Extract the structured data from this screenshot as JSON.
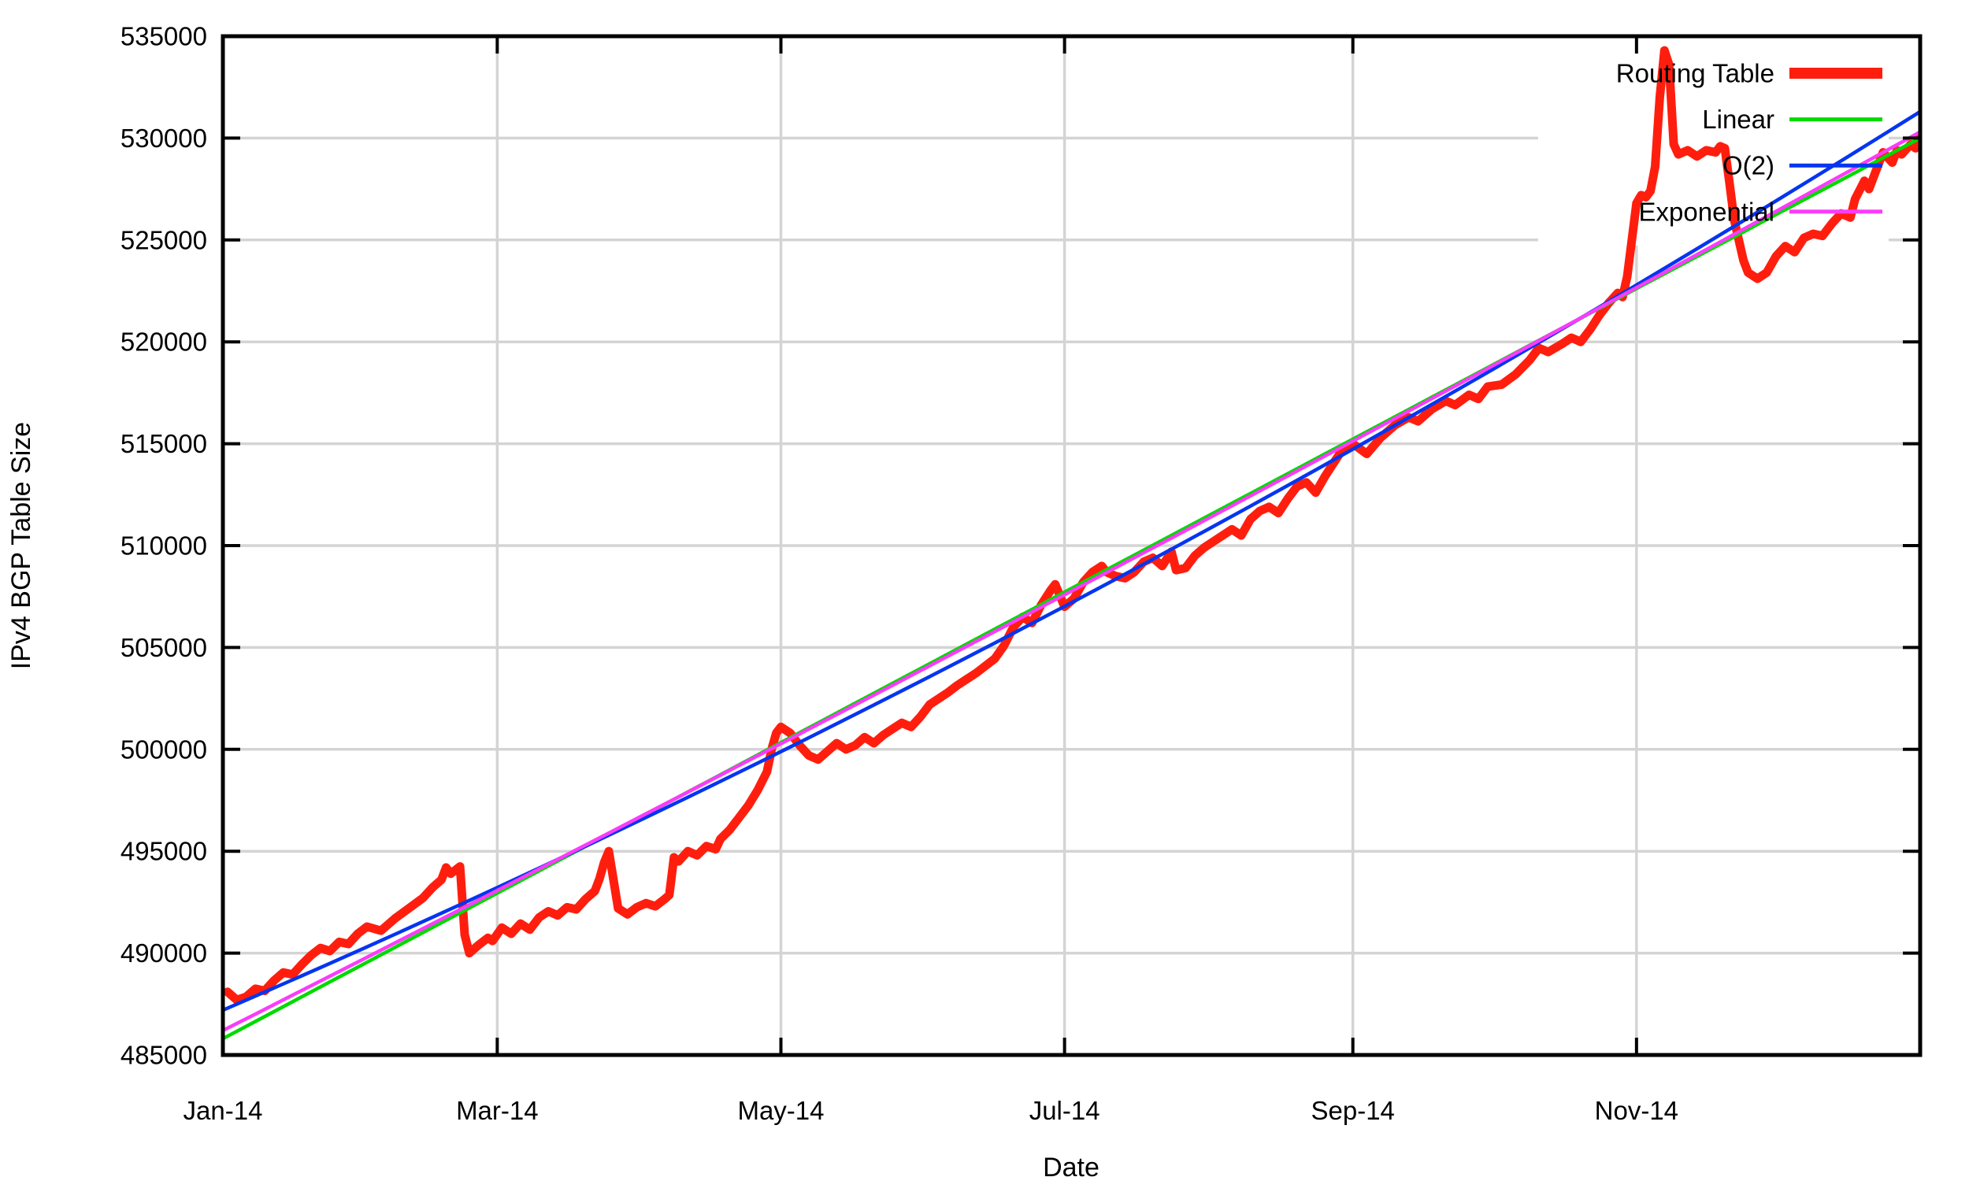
{
  "chart_data": {
    "type": "line",
    "title": "",
    "xlabel": "Date",
    "ylabel": "IPv4 BGP Table Size",
    "grid": true,
    "legend_position": "top-right",
    "x_range_days": [
      0,
      365
    ],
    "x_tick_labels": [
      "Jan-14",
      "Mar-14",
      "May-14",
      "Jul-14",
      "Sep-14",
      "Nov-14"
    ],
    "x_tick_days": [
      0,
      59,
      120,
      181,
      243,
      304
    ],
    "ylim": [
      485000,
      535000
    ],
    "y_tick_step": 5000,
    "y_tick_labels": [
      "485000",
      "490000",
      "495000",
      "500000",
      "505000",
      "510000",
      "515000",
      "520000",
      "525000",
      "530000",
      "535000"
    ],
    "colors": {
      "routing_table": "#ff1e0e",
      "linear": "#00da00",
      "o2": "#0535f0",
      "exponential": "#fa3cfa",
      "grid": "#d4d4d4",
      "frame": "#000000",
      "key_box": "#ffffff"
    },
    "series": [
      {
        "name": "Routing Table",
        "color": "#ff1e0e",
        "width": 11,
        "sample_width": 14,
        "kind": "data",
        "points": [
          [
            1,
            488100
          ],
          [
            3,
            487700
          ],
          [
            5,
            487850
          ],
          [
            7,
            488250
          ],
          [
            9,
            488150
          ],
          [
            11,
            488650
          ],
          [
            13,
            489050
          ],
          [
            15,
            488950
          ],
          [
            17,
            489450
          ],
          [
            19,
            489900
          ],
          [
            21,
            490250
          ],
          [
            23,
            490100
          ],
          [
            25,
            490550
          ],
          [
            27,
            490450
          ],
          [
            29,
            490950
          ],
          [
            31,
            491300
          ],
          [
            34,
            491100
          ],
          [
            37,
            491700
          ],
          [
            40,
            492200
          ],
          [
            43,
            492700
          ],
          [
            45,
            493200
          ],
          [
            47,
            493600
          ],
          [
            48,
            494200
          ],
          [
            49,
            493900
          ],
          [
            51,
            494250
          ],
          [
            52,
            490900
          ],
          [
            53,
            490000
          ],
          [
            55,
            490400
          ],
          [
            57,
            490750
          ],
          [
            58,
            490600
          ],
          [
            60,
            491250
          ],
          [
            62,
            490950
          ],
          [
            64,
            491450
          ],
          [
            66,
            491150
          ],
          [
            68,
            491750
          ],
          [
            70,
            492050
          ],
          [
            72,
            491850
          ],
          [
            74,
            492250
          ],
          [
            76,
            492150
          ],
          [
            78,
            492650
          ],
          [
            80,
            493050
          ],
          [
            81,
            493650
          ],
          [
            82,
            494450
          ],
          [
            83,
            495000
          ],
          [
            84,
            493600
          ],
          [
            85,
            492200
          ],
          [
            87,
            491900
          ],
          [
            89,
            492250
          ],
          [
            91,
            492450
          ],
          [
            93,
            492300
          ],
          [
            95,
            492650
          ],
          [
            96,
            492850
          ],
          [
            97,
            494700
          ],
          [
            98,
            494500
          ],
          [
            100,
            495000
          ],
          [
            102,
            494800
          ],
          [
            104,
            495250
          ],
          [
            106,
            495100
          ],
          [
            107,
            495600
          ],
          [
            109,
            496050
          ],
          [
            111,
            496650
          ],
          [
            113,
            497250
          ],
          [
            115,
            498000
          ],
          [
            117,
            498900
          ],
          [
            118,
            500000
          ],
          [
            119,
            500800
          ],
          [
            120,
            501100
          ],
          [
            122,
            500800
          ],
          [
            124,
            500200
          ],
          [
            126,
            499700
          ],
          [
            128,
            499500
          ],
          [
            130,
            499900
          ],
          [
            132,
            500300
          ],
          [
            134,
            500000
          ],
          [
            136,
            500200
          ],
          [
            138,
            500600
          ],
          [
            140,
            500300
          ],
          [
            142,
            500700
          ],
          [
            144,
            501000
          ],
          [
            146,
            501300
          ],
          [
            148,
            501100
          ],
          [
            150,
            501600
          ],
          [
            152,
            502200
          ],
          [
            154,
            502500
          ],
          [
            156,
            502800
          ],
          [
            158,
            503150
          ],
          [
            160,
            503450
          ],
          [
            162,
            503750
          ],
          [
            164,
            504100
          ],
          [
            166,
            504450
          ],
          [
            168,
            505100
          ],
          [
            170,
            506000
          ],
          [
            172,
            506500
          ],
          [
            174,
            506200
          ],
          [
            176,
            507100
          ],
          [
            178,
            507800
          ],
          [
            179,
            508100
          ],
          [
            181,
            507000
          ],
          [
            183,
            507400
          ],
          [
            185,
            508200
          ],
          [
            187,
            508700
          ],
          [
            189,
            509000
          ],
          [
            190,
            508700
          ],
          [
            192,
            508500
          ],
          [
            194,
            508400
          ],
          [
            196,
            508700
          ],
          [
            198,
            509200
          ],
          [
            200,
            509400
          ],
          [
            202,
            509000
          ],
          [
            204,
            509700
          ],
          [
            205,
            508800
          ],
          [
            207,
            508900
          ],
          [
            209,
            509500
          ],
          [
            211,
            509900
          ],
          [
            213,
            510200
          ],
          [
            215,
            510500
          ],
          [
            217,
            510800
          ],
          [
            219,
            510500
          ],
          [
            221,
            511300
          ],
          [
            223,
            511700
          ],
          [
            225,
            511900
          ],
          [
            227,
            511600
          ],
          [
            229,
            512300
          ],
          [
            231,
            512900
          ],
          [
            233,
            513100
          ],
          [
            235,
            512600
          ],
          [
            237,
            513400
          ],
          [
            239,
            514100
          ],
          [
            241,
            514800
          ],
          [
            243,
            515000
          ],
          [
            246,
            514500
          ],
          [
            249,
            515300
          ],
          [
            252,
            515900
          ],
          [
            255,
            516300
          ],
          [
            257,
            516100
          ],
          [
            260,
            516700
          ],
          [
            263,
            517100
          ],
          [
            265,
            516900
          ],
          [
            268,
            517400
          ],
          [
            270,
            517200
          ],
          [
            272,
            517800
          ],
          [
            275,
            517900
          ],
          [
            278,
            518400
          ],
          [
            281,
            519100
          ],
          [
            283,
            519700
          ],
          [
            285,
            519500
          ],
          [
            288,
            519900
          ],
          [
            290,
            520200
          ],
          [
            292,
            520000
          ],
          [
            294,
            520600
          ],
          [
            296,
            521300
          ],
          [
            298,
            521900
          ],
          [
            300,
            522400
          ],
          [
            301,
            522200
          ],
          [
            302,
            523200
          ],
          [
            303,
            525000
          ],
          [
            304,
            526800
          ],
          [
            305,
            527200
          ],
          [
            306,
            527100
          ],
          [
            307,
            527400
          ],
          [
            308,
            528600
          ],
          [
            309,
            532000
          ],
          [
            310,
            534300
          ],
          [
            311,
            533600
          ],
          [
            312,
            529700
          ],
          [
            313,
            529200
          ],
          [
            315,
            529400
          ],
          [
            317,
            529100
          ],
          [
            319,
            529400
          ],
          [
            321,
            529300
          ],
          [
            322,
            529600
          ],
          [
            323,
            529500
          ],
          [
            324,
            527800
          ],
          [
            325,
            526000
          ],
          [
            326,
            525000
          ],
          [
            327,
            524000
          ],
          [
            328,
            523400
          ],
          [
            330,
            523100
          ],
          [
            332,
            523400
          ],
          [
            334,
            524200
          ],
          [
            336,
            524700
          ],
          [
            338,
            524400
          ],
          [
            340,
            525100
          ],
          [
            342,
            525300
          ],
          [
            344,
            525200
          ],
          [
            346,
            525800
          ],
          [
            348,
            526300
          ],
          [
            350,
            526100
          ],
          [
            351,
            527000
          ],
          [
            353,
            527900
          ],
          [
            354,
            527500
          ],
          [
            356,
            528700
          ],
          [
            357,
            529300
          ],
          [
            359,
            528800
          ],
          [
            360,
            529400
          ],
          [
            361,
            529200
          ],
          [
            363,
            529700
          ],
          [
            364,
            529500
          ],
          [
            365,
            530100
          ]
        ]
      },
      {
        "name": "Linear",
        "color": "#00da00",
        "width": 4.5,
        "sample_width": 5,
        "kind": "fit-linear",
        "start": 485800,
        "end": 530000
      },
      {
        "name": "O(2)",
        "color": "#0535f0",
        "width": 4.5,
        "sample_width": 5,
        "kind": "fit-quadratic",
        "start": 487200,
        "mid": 507200,
        "end": 531300
      },
      {
        "name": "Exponential",
        "color": "#fa3cfa",
        "width": 4.5,
        "sample_width": 5,
        "kind": "fit-exponential",
        "start": 486200,
        "end": 530300
      }
    ]
  }
}
